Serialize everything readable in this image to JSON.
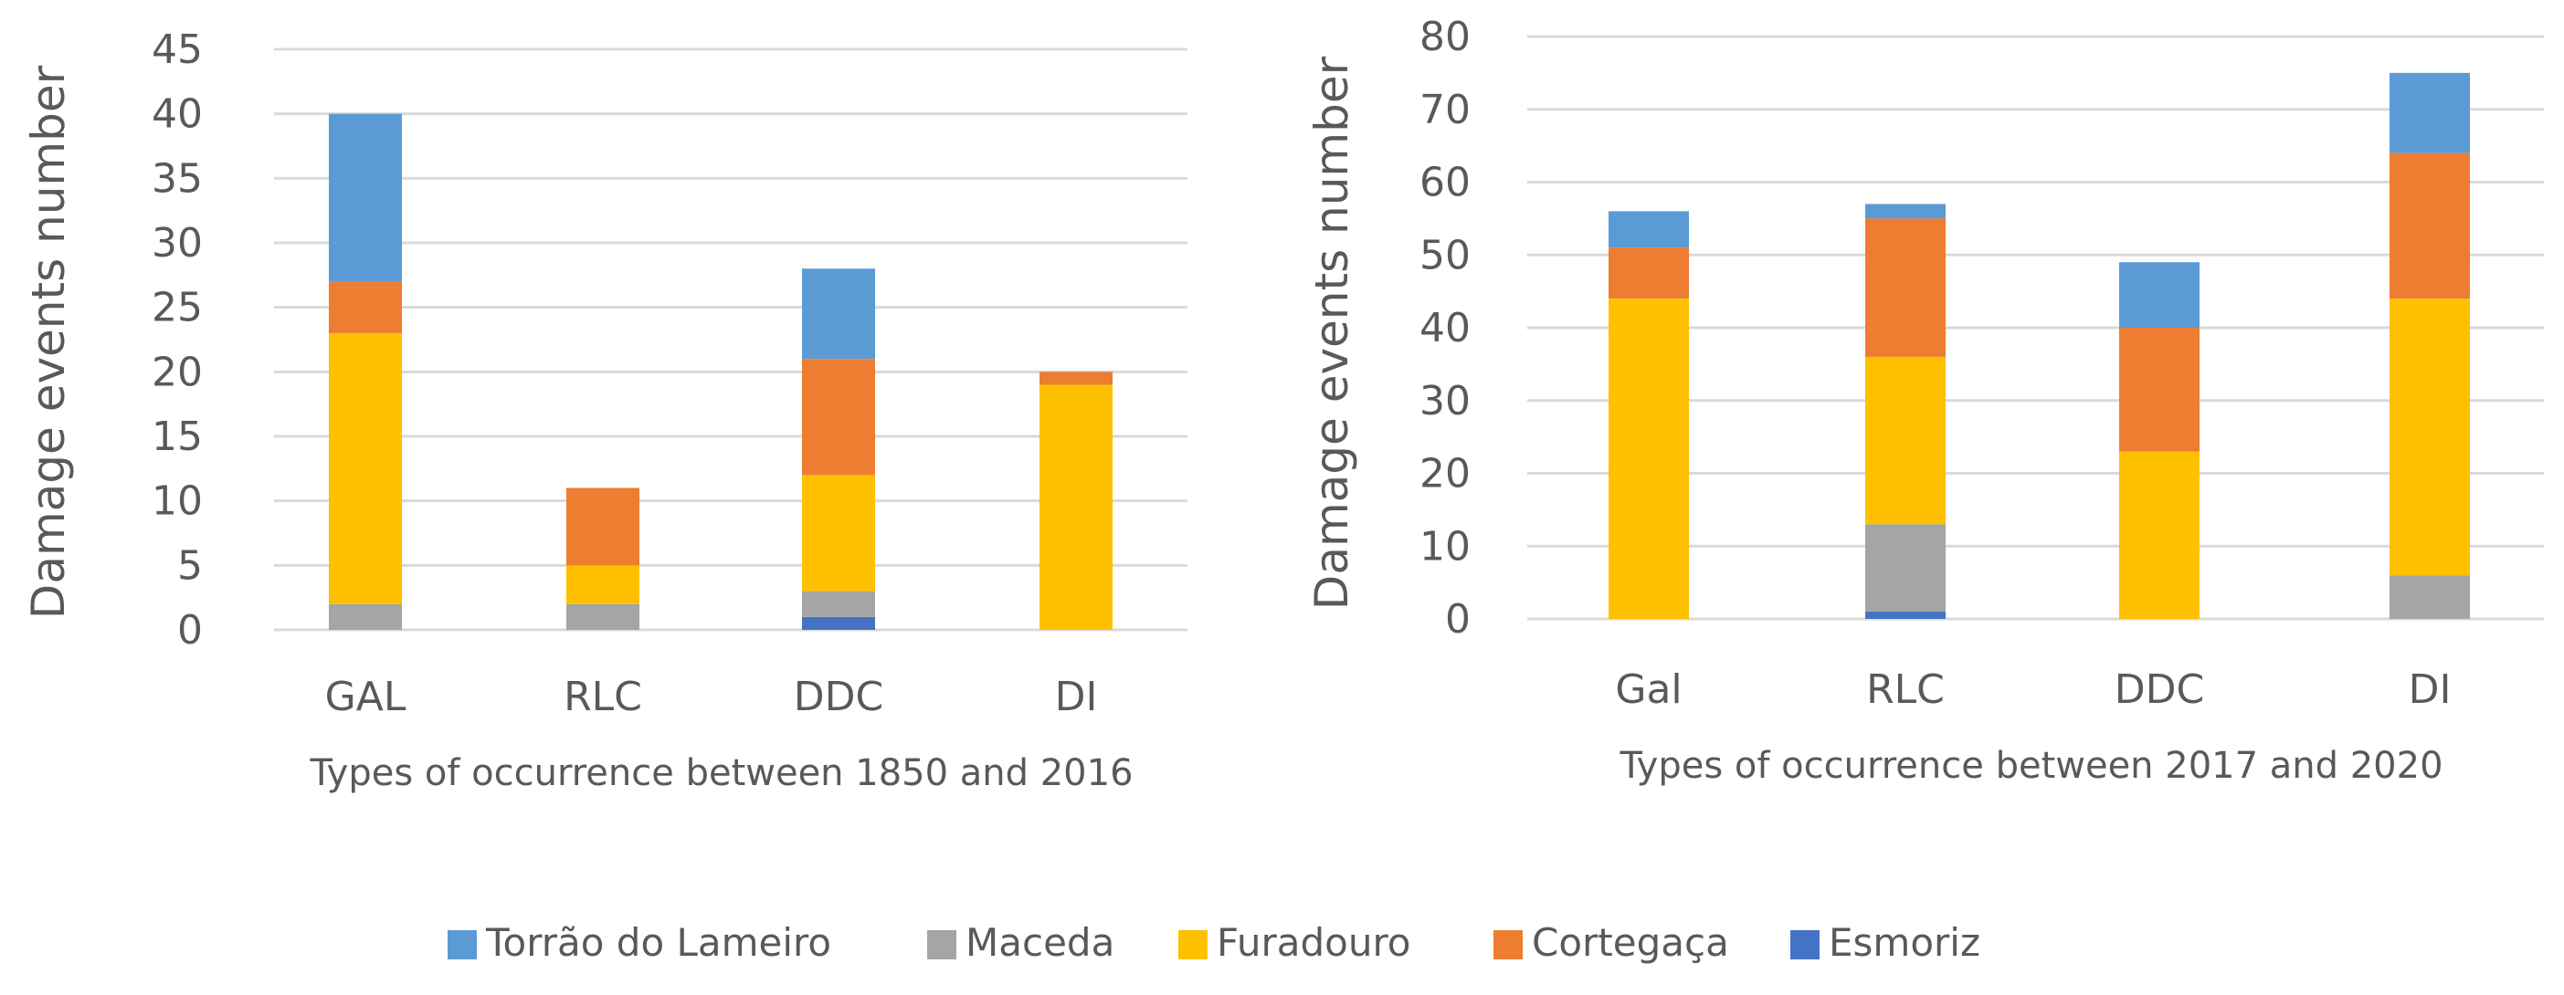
{
  "legend": [
    {
      "name": "Torrão do Lameiro",
      "color": "#5B9BD5"
    },
    {
      "name": "Maceda",
      "color": "#A5A5A5"
    },
    {
      "name": "Furadouro",
      "color": "#FFC000"
    },
    {
      "name": "Cortegaça",
      "color": "#ED7D31"
    },
    {
      "name": "Esmoriz",
      "color": "#4472C4"
    }
  ],
  "chart_data": [
    {
      "type": "bar",
      "stacked": true,
      "title": "",
      "xlabel": "Types of occurrence between 1850 and 2016",
      "ylabel": "Damage events number",
      "ylim": [
        0,
        45
      ],
      "yticks": [
        0,
        5,
        10,
        15,
        20,
        25,
        30,
        35,
        40,
        45
      ],
      "categories": [
        "GAL",
        "RLC",
        "DDC",
        "DI"
      ],
      "grid": true,
      "series": [
        {
          "name": "Esmoriz",
          "color": "#4472C4",
          "values": [
            0,
            0,
            1,
            0
          ]
        },
        {
          "name": "Maceda",
          "color": "#A5A5A5",
          "values": [
            2,
            2,
            2,
            0
          ]
        },
        {
          "name": "Furadouro",
          "color": "#FFC000",
          "values": [
            21,
            3,
            9,
            19
          ]
        },
        {
          "name": "Cortegaça",
          "color": "#ED7D31",
          "values": [
            4,
            6,
            9,
            1
          ]
        },
        {
          "name": "Torrão do Lameiro",
          "color": "#5B9BD5",
          "values": [
            13,
            0,
            7,
            0
          ]
        }
      ]
    },
    {
      "type": "bar",
      "stacked": true,
      "title": "",
      "xlabel": "Types of occurrence between 2017 and 2020",
      "ylabel": "Damage events number",
      "ylim": [
        0,
        80
      ],
      "yticks": [
        0,
        10,
        20,
        30,
        40,
        50,
        60,
        70,
        80
      ],
      "categories": [
        "Gal",
        "RLC",
        "DDC",
        "DI"
      ],
      "grid": true,
      "series": [
        {
          "name": "Esmoriz",
          "color": "#4472C4",
          "values": [
            0,
            1,
            0,
            0
          ]
        },
        {
          "name": "Maceda",
          "color": "#A5A5A5",
          "values": [
            0,
            12,
            0,
            6
          ]
        },
        {
          "name": "Furadouro",
          "color": "#FFC000",
          "values": [
            44,
            23,
            23,
            38
          ]
        },
        {
          "name": "Cortegaça",
          "color": "#ED7D31",
          "values": [
            7,
            19,
            17,
            20
          ]
        },
        {
          "name": "Torrão do Lameiro",
          "color": "#5B9BD5",
          "values": [
            5,
            2,
            9,
            11
          ]
        }
      ]
    }
  ]
}
